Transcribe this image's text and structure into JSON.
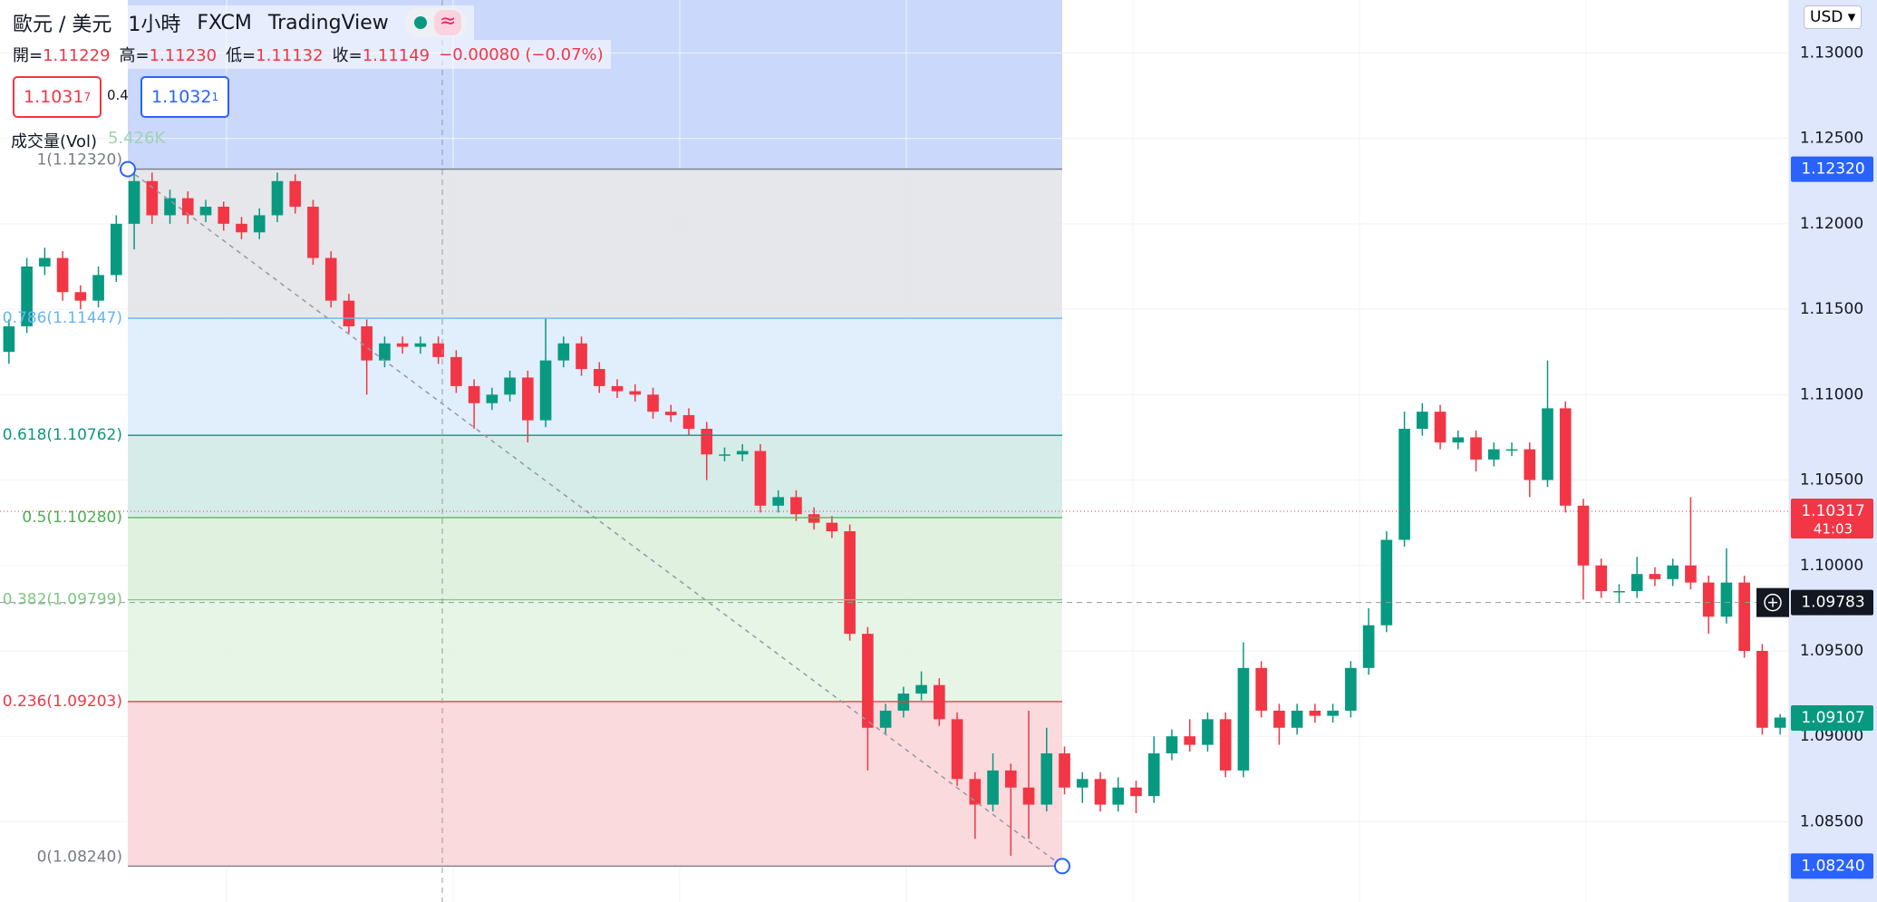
{
  "header": {
    "symbol": "歐元 / 美元",
    "interval": "1小時",
    "exchange": "FXCM",
    "source": "TradingView",
    "ohlc": [
      {
        "key": "開=",
        "value": "1.11229"
      },
      {
        "key": "高=",
        "value": "1.11230"
      },
      {
        "key": "低=",
        "value": "1.11132"
      },
      {
        "key": "收=",
        "value": "1.11149"
      }
    ],
    "change": "−0.00080 (−0.07%)",
    "sell": {
      "main": "1.1031",
      "sup": "7"
    },
    "spread": "0.4",
    "buy": {
      "main": "1.1032",
      "sup": "1"
    },
    "volume_label": "成交量(Vol)",
    "volume_value": "5.426K",
    "currency": "USD"
  },
  "chart_data": {
    "type": "candlestick",
    "up_color": "#089981",
    "down_color": "#f23645",
    "ylim": [
      1.0803,
      1.1331
    ],
    "yticks": [
      {
        "value": 1.13,
        "label": "1.13000"
      },
      {
        "value": 1.125,
        "label": "1.12500"
      },
      {
        "value": 1.12,
        "label": "1.12000"
      },
      {
        "value": 1.115,
        "label": "1.11500"
      },
      {
        "value": 1.11,
        "label": "1.11000"
      },
      {
        "value": 1.105,
        "label": "1.10500"
      },
      {
        "value": 1.1,
        "label": "1.10000"
      },
      {
        "value": 1.095,
        "label": "1.09500"
      },
      {
        "value": 1.09,
        "label": "1.09000"
      },
      {
        "value": 1.085,
        "label": "1.08500"
      }
    ],
    "fib_levels": [
      {
        "ratio": 1,
        "price": 1.1232,
        "label": "1(1.12320)",
        "color": "#787b86",
        "fill": "#e2e3e6"
      },
      {
        "ratio": 0.786,
        "price": 1.11447,
        "label": "0.786(1.11447)",
        "color": "#64b5f6",
        "fill": "#dcebfc"
      },
      {
        "ratio": 0.618,
        "price": 1.10762,
        "label": "0.618(1.10762)",
        "color": "#089981",
        "fill": "#cfe9e4"
      },
      {
        "ratio": 0.5,
        "price": 1.1028,
        "label": "0.5(1.10280)",
        "color": "#4caf50",
        "fill": "#daeedb"
      },
      {
        "ratio": 0.382,
        "price": 1.09799,
        "label": "0.382(1.09799)",
        "color": "#81c784",
        "fill": "#e3f3e2"
      },
      {
        "ratio": 0.236,
        "price": 1.09203,
        "label": "0.236(1.09203)",
        "color": "#f23645",
        "fill": "#fad4d7"
      },
      {
        "ratio": 0,
        "price": 1.0824,
        "label": "0(1.08240)",
        "color": "#787b86"
      }
    ],
    "price_tags": [
      {
        "value": 1.1232,
        "label": "1.12320",
        "color": "#2962ff"
      },
      {
        "value": 1.10317,
        "label": "1.10317",
        "color": "#f23645",
        "countdown": "41:03"
      },
      {
        "value": 1.09783,
        "label": "1.09783",
        "color": "#131722"
      },
      {
        "value": 1.09107,
        "label": "1.09107",
        "color": "#089981"
      },
      {
        "value": 1.0824,
        "label": "1.08240",
        "color": "#2962ff"
      }
    ],
    "candles": [
      [
        1.1125,
        1.1144,
        1.1118,
        1.114
      ],
      [
        1.114,
        1.118,
        1.1136,
        1.1175
      ],
      [
        1.1175,
        1.1186,
        1.117,
        1.118
      ],
      [
        1.118,
        1.1184,
        1.1155,
        1.116
      ],
      [
        1.116,
        1.1164,
        1.115,
        1.1155
      ],
      [
        1.1155,
        1.1175,
        1.1151,
        1.117
      ],
      [
        1.117,
        1.1205,
        1.1166,
        1.12
      ],
      [
        1.12,
        1.1232,
        1.1185,
        1.1225
      ],
      [
        1.1225,
        1.123,
        1.12,
        1.1205
      ],
      [
        1.1205,
        1.122,
        1.12,
        1.1215
      ],
      [
        1.1215,
        1.1219,
        1.12,
        1.1205
      ],
      [
        1.1205,
        1.1214,
        1.1201,
        1.121
      ],
      [
        1.121,
        1.1213,
        1.1196,
        1.12
      ],
      [
        1.12,
        1.1204,
        1.1191,
        1.1195
      ],
      [
        1.1195,
        1.1209,
        1.1191,
        1.1205
      ],
      [
        1.1205,
        1.123,
        1.1201,
        1.1225
      ],
      [
        1.1225,
        1.1229,
        1.1206,
        1.121
      ],
      [
        1.121,
        1.1214,
        1.1176,
        1.118
      ],
      [
        1.118,
        1.1184,
        1.1151,
        1.1155
      ],
      [
        1.1155,
        1.1159,
        1.1136,
        1.114
      ],
      [
        1.114,
        1.1144,
        1.11,
        1.112
      ],
      [
        1.112,
        1.1134,
        1.1116,
        1.113
      ],
      [
        1.113,
        1.1134,
        1.1124,
        1.1128
      ],
      [
        1.1128,
        1.1134,
        1.1124,
        1.113
      ],
      [
        1.113,
        1.1134,
        1.1118,
        1.1122
      ],
      [
        1.1122,
        1.1126,
        1.1101,
        1.1105
      ],
      [
        1.1105,
        1.1109,
        1.108,
        1.1095
      ],
      [
        1.1095,
        1.1104,
        1.1091,
        1.11
      ],
      [
        1.11,
        1.1114,
        1.1096,
        1.111
      ],
      [
        1.111,
        1.1114,
        1.1072,
        1.1085
      ],
      [
        1.1085,
        1.1145,
        1.1081,
        1.112
      ],
      [
        1.112,
        1.1134,
        1.1116,
        1.113
      ],
      [
        1.113,
        1.1134,
        1.1111,
        1.1115
      ],
      [
        1.1115,
        1.1119,
        1.1101,
        1.1105
      ],
      [
        1.1105,
        1.1109,
        1.1098,
        1.1102
      ],
      [
        1.1102,
        1.1106,
        1.1096,
        1.11
      ],
      [
        1.11,
        1.1104,
        1.1086,
        1.109
      ],
      [
        1.109,
        1.1094,
        1.1084,
        1.1088
      ],
      [
        1.1088,
        1.1092,
        1.1076,
        1.108
      ],
      [
        1.108,
        1.1084,
        1.105,
        1.1065
      ],
      [
        1.1065,
        1.1069,
        1.1061,
        1.1065
      ],
      [
        1.1065,
        1.1071,
        1.1061,
        1.1067
      ],
      [
        1.1067,
        1.1071,
        1.1031,
        1.1035
      ],
      [
        1.1035,
        1.1044,
        1.1031,
        1.104
      ],
      [
        1.104,
        1.1044,
        1.1026,
        1.103
      ],
      [
        1.103,
        1.1034,
        1.1021,
        1.1025
      ],
      [
        1.1025,
        1.1029,
        1.1016,
        1.102
      ],
      [
        1.102,
        1.1024,
        1.0956,
        1.096
      ],
      [
        1.096,
        1.0964,
        1.088,
        1.0905
      ],
      [
        1.0905,
        1.0919,
        1.0901,
        1.0915
      ],
      [
        1.0915,
        1.0929,
        1.0911,
        1.0925
      ],
      [
        1.0925,
        1.0938,
        1.0921,
        1.093
      ],
      [
        1.093,
        1.0934,
        1.0906,
        1.091
      ],
      [
        1.091,
        1.0914,
        1.0871,
        1.0875
      ],
      [
        1.0875,
        1.0879,
        1.084,
        1.086
      ],
      [
        1.086,
        1.089,
        1.0856,
        1.088
      ],
      [
        1.088,
        1.0884,
        1.083,
        1.087
      ],
      [
        1.087,
        1.0915,
        1.084,
        1.086
      ],
      [
        1.086,
        1.0905,
        1.0856,
        1.089
      ],
      [
        1.089,
        1.0894,
        1.0866,
        1.087
      ],
      [
        1.087,
        1.0879,
        1.0861,
        1.0875
      ],
      [
        1.0875,
        1.0879,
        1.0856,
        1.086
      ],
      [
        1.086,
        1.0876,
        1.0856,
        1.087
      ],
      [
        1.087,
        1.0874,
        1.0855,
        1.0865
      ],
      [
        1.0865,
        1.09,
        1.0861,
        1.089
      ],
      [
        1.089,
        1.0904,
        1.0886,
        1.09
      ],
      [
        1.09,
        1.091,
        1.0891,
        1.0895
      ],
      [
        1.0895,
        1.0914,
        1.0891,
        1.091
      ],
      [
        1.091,
        1.0914,
        1.0876,
        1.088
      ],
      [
        1.088,
        1.0955,
        1.0876,
        1.094
      ],
      [
        1.094,
        1.0944,
        1.0911,
        1.0915
      ],
      [
        1.0915,
        1.0919,
        1.0895,
        1.0905
      ],
      [
        1.0905,
        1.0919,
        1.0901,
        1.0915
      ],
      [
        1.0915,
        1.0919,
        1.0908,
        1.0912
      ],
      [
        1.0912,
        1.0919,
        1.0908,
        1.0915
      ],
      [
        1.0915,
        1.0944,
        1.0911,
        1.094
      ],
      [
        1.094,
        1.0975,
        1.0936,
        1.0965
      ],
      [
        1.0965,
        1.102,
        1.0961,
        1.1015
      ],
      [
        1.1015,
        1.109,
        1.1011,
        1.108
      ],
      [
        1.108,
        1.1095,
        1.1076,
        1.109
      ],
      [
        1.109,
        1.1094,
        1.1068,
        1.1072
      ],
      [
        1.1072,
        1.1079,
        1.1068,
        1.1075
      ],
      [
        1.1075,
        1.1079,
        1.1055,
        1.1062
      ],
      [
        1.1062,
        1.1072,
        1.1058,
        1.1068
      ],
      [
        1.1068,
        1.1072,
        1.1064,
        1.1068
      ],
      [
        1.1068,
        1.1072,
        1.104,
        1.105
      ],
      [
        1.105,
        1.112,
        1.1046,
        1.1092
      ],
      [
        1.1092,
        1.1096,
        1.1031,
        1.1035
      ],
      [
        1.1035,
        1.1039,
        1.098,
        1.1
      ],
      [
        1.1,
        1.1004,
        1.0981,
        1.0985
      ],
      [
        1.0985,
        1.0989,
        1.0978,
        1.0985
      ],
      [
        1.0985,
        1.1005,
        1.0981,
        1.0995
      ],
      [
        1.0995,
        1.0999,
        1.0988,
        1.0992
      ],
      [
        1.0992,
        1.1004,
        1.0988,
        1.1
      ],
      [
        1.1,
        1.104,
        1.0986,
        1.099
      ],
      [
        1.099,
        1.0994,
        1.096,
        1.097
      ],
      [
        1.097,
        1.101,
        1.0966,
        1.099
      ],
      [
        1.099,
        1.0994,
        1.0946,
        1.095
      ],
      [
        1.095,
        1.0954,
        1.0901,
        1.0905
      ],
      [
        1.0905,
        1.0913,
        1.0901,
        1.0911
      ]
    ]
  }
}
